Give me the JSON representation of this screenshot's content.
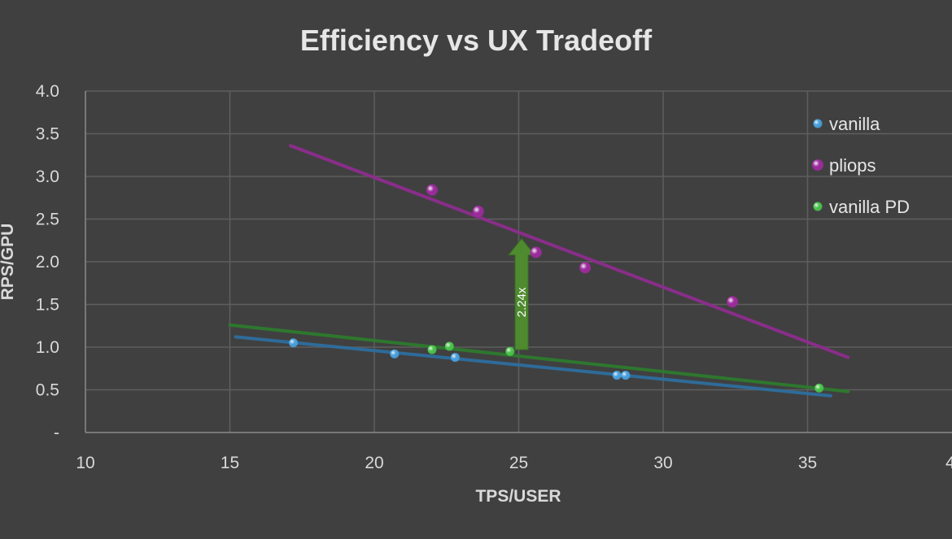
{
  "chart_data": {
    "type": "scatter",
    "title": "Efficiency vs UX Tradeoff",
    "xlabel": "TPS/USER",
    "ylabel": "RPS/GPU",
    "xlim": [
      10,
      40
    ],
    "ylim": [
      0,
      4.0
    ],
    "x_ticks": [
      "10",
      "15",
      "20",
      "25",
      "30",
      "35",
      "4"
    ],
    "y_ticks": [
      "-",
      "0.5",
      "1.0",
      "1.5",
      "2.0",
      "2.5",
      "3.0",
      "3.5",
      "4.0"
    ],
    "grid": true,
    "legend_position": "right",
    "series": [
      {
        "name": "vanilla",
        "color": "#4aa3e0",
        "points": [
          [
            17.2,
            1.05
          ],
          [
            20.7,
            0.92
          ],
          [
            22.8,
            0.88
          ],
          [
            28.4,
            0.67
          ],
          [
            28.7,
            0.67
          ]
        ],
        "trendline": {
          "color": "#2e6e9e",
          "from": [
            15.2,
            1.12
          ],
          "to": [
            35.8,
            0.43
          ]
        }
      },
      {
        "name": "pliops",
        "color": "#a02aa0",
        "points": [
          [
            22.0,
            2.84
          ],
          [
            23.6,
            2.59
          ],
          [
            25.6,
            2.11
          ],
          [
            27.3,
            1.93
          ],
          [
            32.4,
            1.53
          ]
        ],
        "trendline": {
          "color": "#8e2d8e",
          "from": [
            17.1,
            3.36
          ],
          "to": [
            36.4,
            0.88
          ]
        }
      },
      {
        "name": "vanilla PD",
        "color": "#4cc74c",
        "points": [
          [
            22.0,
            0.97
          ],
          [
            22.6,
            1.01
          ],
          [
            24.7,
            0.95
          ],
          [
            35.4,
            0.52
          ]
        ],
        "trendline": {
          "color": "#2e7a2e",
          "from": [
            15.0,
            1.26
          ],
          "to": [
            36.4,
            0.48
          ]
        }
      }
    ],
    "annotations": [
      {
        "type": "arrow",
        "label": "2.24x",
        "x": 25.1,
        "y_from": 0.97,
        "y_to": 2.27,
        "color": "#4f8a2f"
      }
    ]
  }
}
